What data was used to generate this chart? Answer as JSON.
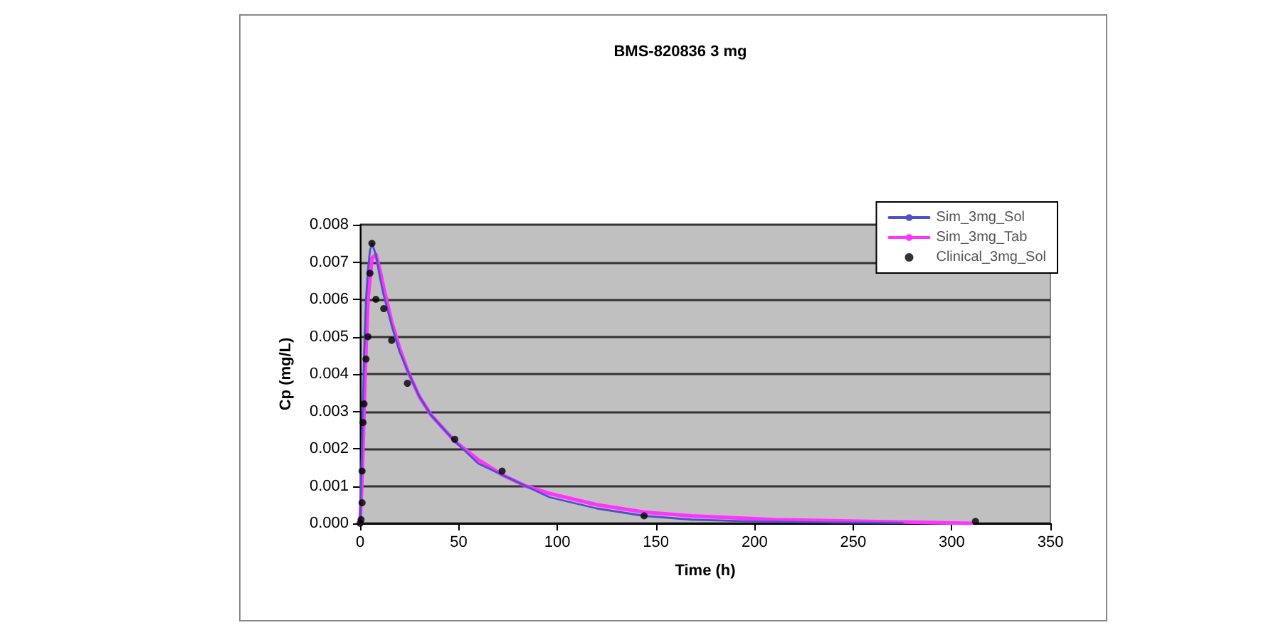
{
  "chart_data": {
    "type": "line",
    "title": "BMS-820836 3 mg",
    "xlabel": "Time (h)",
    "ylabel": "Cp (mg/L)",
    "xlim": [
      0,
      350
    ],
    "xticks": [
      0,
      50,
      100,
      150,
      200,
      250,
      300,
      350
    ],
    "ylim": [
      0,
      0.008
    ],
    "yticks": [
      {
        "value": 0,
        "label": "0.000"
      },
      {
        "value": 0.001,
        "label": "0.001"
      },
      {
        "value": 0.002,
        "label": "0.002"
      },
      {
        "value": 0.003,
        "label": "0.003"
      },
      {
        "value": 0.004,
        "label": "0.004"
      },
      {
        "value": 0.005,
        "label": "0.005"
      },
      {
        "value": 0.006,
        "label": "0.006"
      },
      {
        "value": 0.007,
        "label": "0.007"
      },
      {
        "value": 0.008,
        "label": "0.008"
      }
    ],
    "grid": "y",
    "legend": "top right",
    "series": [
      {
        "name": "Sim_3mg_Sol",
        "type": "line",
        "marker": "none",
        "color": "#5050c8",
        "x": [
          0,
          1,
          2,
          3,
          4,
          5,
          6,
          8,
          10,
          12,
          16,
          20,
          24,
          30,
          36,
          48,
          60,
          72,
          84,
          96,
          120,
          144,
          168,
          200,
          240,
          275
        ],
        "values": [
          0,
          0.0022,
          0.0045,
          0.006,
          0.0068,
          0.0073,
          0.0075,
          0.0072,
          0.0066,
          0.0061,
          0.0053,
          0.0046,
          0.0041,
          0.0034,
          0.0029,
          0.0022,
          0.0016,
          0.0013,
          0.001,
          0.0007,
          0.0004,
          0.0002,
          0.0001,
          5e-05,
          2e-05,
          1e-05
        ]
      },
      {
        "name": "Sim_3mg_Tab",
        "type": "line",
        "marker": "none",
        "color": "#ff33ff",
        "x": [
          0,
          1,
          2,
          3,
          4,
          6,
          8,
          10,
          12,
          16,
          20,
          24,
          30,
          36,
          48,
          60,
          72,
          84,
          96,
          120,
          144,
          168,
          210,
          310
        ],
        "values": [
          0,
          0.0012,
          0.003,
          0.0047,
          0.006,
          0.0071,
          0.0072,
          0.0068,
          0.0063,
          0.0054,
          0.0047,
          0.0041,
          0.0034,
          0.0029,
          0.0022,
          0.0017,
          0.0013,
          0.001,
          0.0008,
          0.0005,
          0.0003,
          0.0002,
          0.0001,
          0
        ]
      },
      {
        "name": "Clinical_3mg_Sol",
        "type": "scatter",
        "marker": "circle",
        "color": "#000000",
        "x": [
          0,
          0.5,
          1,
          1,
          1.5,
          2,
          3,
          4,
          5,
          6,
          8,
          12,
          16,
          24,
          48,
          72,
          144,
          312
        ],
        "values": [
          0,
          0.0001,
          0.00055,
          0.0014,
          0.0027,
          0.0032,
          0.0044,
          0.005,
          0.0067,
          0.0075,
          0.006,
          0.00575,
          0.0049,
          0.00375,
          0.00225,
          0.0014,
          0.0002,
          5e-05
        ]
      }
    ]
  }
}
